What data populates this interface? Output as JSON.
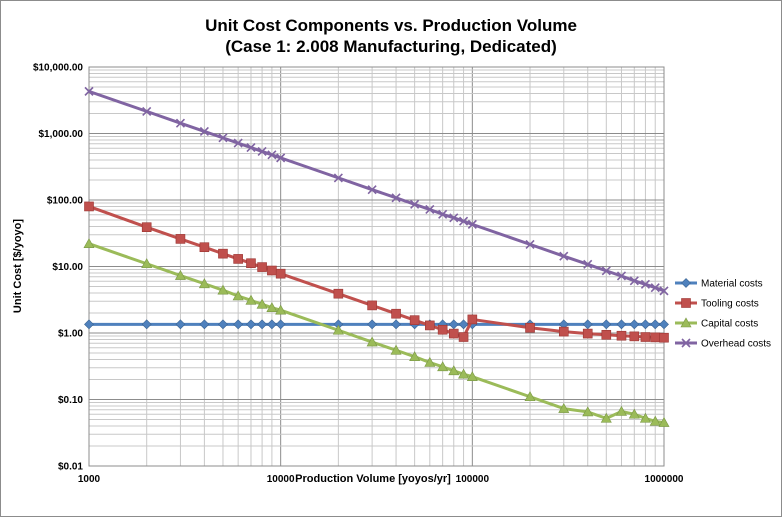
{
  "chart_data": {
    "type": "line",
    "title_line1": "Unit Cost Components vs. Production Volume",
    "title_line2": "(Case 1: 2.008 Manufacturing, Dedicated)",
    "xlabel": "Production Volume [yoyos/yr]",
    "ylabel": "Unit Cost [$/yoyo]",
    "x_scale": "log",
    "y_scale": "log",
    "xlim": [
      1000,
      1000000
    ],
    "ylim": [
      0.01,
      10000
    ],
    "x_ticks": [
      {
        "value": 1000,
        "label": "1000"
      },
      {
        "value": 10000,
        "label": "10000"
      },
      {
        "value": 100000,
        "label": "100000"
      },
      {
        "value": 1000000,
        "label": "1000000"
      }
    ],
    "y_ticks": [
      {
        "value": 10000,
        "label": "$10,000.00"
      },
      {
        "value": 1000,
        "label": "$1,000.00"
      },
      {
        "value": 100,
        "label": "$100.00"
      },
      {
        "value": 10,
        "label": "$10.00"
      },
      {
        "value": 1,
        "label": "$1.00"
      },
      {
        "value": 0.1,
        "label": "$0.10"
      },
      {
        "value": 0.01,
        "label": "$0.01"
      }
    ],
    "grid": true,
    "legend_position": "right",
    "x": [
      1000,
      2000,
      3000,
      4000,
      5000,
      6000,
      7000,
      8000,
      9000,
      10000,
      20000,
      30000,
      40000,
      50000,
      60000,
      70000,
      80000,
      90000,
      100000,
      200000,
      300000,
      400000,
      500000,
      600000,
      700000,
      800000,
      900000,
      1000000
    ],
    "series": [
      {
        "name": "Material costs",
        "color": "#4f81bd",
        "marker": "diamond",
        "values": [
          1.35,
          1.35,
          1.35,
          1.35,
          1.35,
          1.35,
          1.35,
          1.35,
          1.35,
          1.35,
          1.35,
          1.35,
          1.35,
          1.35,
          1.35,
          1.35,
          1.35,
          1.35,
          1.35,
          1.35,
          1.35,
          1.35,
          1.35,
          1.35,
          1.35,
          1.35,
          1.35,
          1.35
        ]
      },
      {
        "name": "Tooling costs",
        "color": "#c0504d",
        "marker": "square",
        "values": [
          80,
          39,
          26,
          19.5,
          15.6,
          13,
          11.2,
          9.8,
          8.7,
          7.8,
          3.9,
          2.6,
          1.95,
          1.56,
          1.3,
          1.12,
          0.98,
          0.87,
          1.6,
          1.2,
          1.05,
          0.98,
          0.94,
          0.91,
          0.89,
          0.87,
          0.86,
          0.85
        ]
      },
      {
        "name": "Capital costs",
        "color": "#9bbb59",
        "marker": "triangle",
        "values": [
          22,
          11,
          7.3,
          5.5,
          4.4,
          3.6,
          3.1,
          2.7,
          2.4,
          2.2,
          1.1,
          0.73,
          0.55,
          0.44,
          0.36,
          0.31,
          0.27,
          0.24,
          0.22,
          0.11,
          0.073,
          0.065,
          0.052,
          0.066,
          0.06,
          0.052,
          0.047,
          0.045
        ]
      },
      {
        "name": "Overhead costs",
        "color": "#8064a2",
        "marker": "x",
        "values": [
          4300,
          2150,
          1430,
          1075,
          860,
          717,
          614,
          537,
          478,
          430,
          215,
          143,
          108,
          86,
          72,
          61,
          54,
          48,
          43,
          21.5,
          14.3,
          10.8,
          8.6,
          7.2,
          6.1,
          5.4,
          4.8,
          4.3
        ]
      }
    ]
  }
}
